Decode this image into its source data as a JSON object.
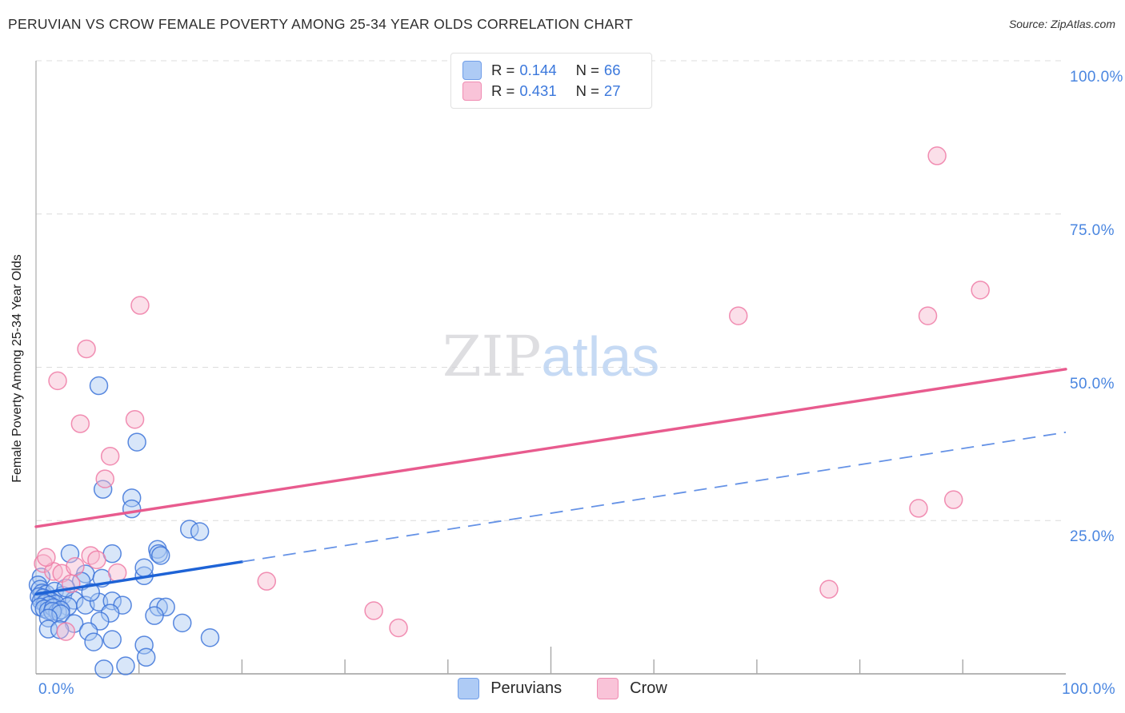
{
  "header": {
    "title": "PERUVIAN VS CROW FEMALE POVERTY AMONG 25-34 YEAR OLDS CORRELATION CHART",
    "source": "Source: ZipAtlas.com"
  },
  "y_axis_title": "Female Poverty Among 25-34 Year Olds",
  "stats_legend": {
    "rows": [
      {
        "r_label": "R =",
        "r_value": "0.144",
        "n_label": "N =",
        "n_value": "66"
      },
      {
        "r_label": "R =",
        "r_value": "0.431",
        "n_label": "N =",
        "n_value": "27"
      }
    ]
  },
  "watermark": {
    "zip": "ZIP",
    "atlas": "atlas"
  },
  "axis": {
    "right_labels": [
      "100.0%",
      "75.0%",
      "50.0%",
      "25.0%"
    ],
    "bottom_left": "0.0%",
    "bottom_right": "100.0%"
  },
  "bottom_legend": [
    {
      "label": "Peruvians",
      "color": "blue"
    },
    {
      "label": "Crow",
      "color": "pink"
    }
  ],
  "chart_data": {
    "type": "scatter",
    "title": "PERUVIAN VS CROW FEMALE POVERTY AMONG 25-34 YEAR OLDS CORRELATION CHART",
    "xlabel": "",
    "ylabel": "Female Poverty Among 25-34 Year Olds",
    "xlim": [
      0,
      100
    ],
    "ylim": [
      0,
      100
    ],
    "x_ticks_pct": [
      10,
      20,
      30,
      40,
      50,
      60,
      70,
      80,
      90
    ],
    "x_major_tick_pct": 50,
    "y_gridlines_pct": [
      25,
      50,
      75,
      100
    ],
    "grid": "dashed-horizontal",
    "legend_position": "bottom-center",
    "series": [
      {
        "name": "Peruvians",
        "R": 0.144,
        "N": 66,
        "stroke": "#3d74d9",
        "fill": "#a9c7f2",
        "points": [
          [
            6.1,
            47.0
          ],
          [
            9.8,
            37.8
          ],
          [
            6.5,
            30.1
          ],
          [
            9.3,
            28.7
          ],
          [
            9.3,
            26.9
          ],
          [
            14.9,
            23.6
          ],
          [
            15.9,
            23.2
          ],
          [
            11.8,
            20.3
          ],
          [
            11.9,
            19.6
          ],
          [
            3.3,
            19.6
          ],
          [
            7.4,
            19.6
          ],
          [
            12.1,
            19.3
          ],
          [
            0.5,
            15.8
          ],
          [
            4.8,
            16.3
          ],
          [
            6.4,
            15.6
          ],
          [
            10.5,
            16.0
          ],
          [
            4.4,
            15.1
          ],
          [
            10.5,
            17.3
          ],
          [
            0.2,
            14.5
          ],
          [
            0.4,
            13.8
          ],
          [
            0.6,
            13.2
          ],
          [
            1.0,
            13.0
          ],
          [
            1.8,
            13.5
          ],
          [
            2.6,
            12.8
          ],
          [
            0.3,
            12.6
          ],
          [
            0.7,
            12.4
          ],
          [
            1.1,
            12.1
          ],
          [
            1.5,
            11.8
          ],
          [
            1.9,
            11.4
          ],
          [
            0.5,
            11.9
          ],
          [
            0.9,
            11.5
          ],
          [
            1.3,
            11.2
          ],
          [
            3.7,
            12.0
          ],
          [
            4.8,
            11.2
          ],
          [
            6.1,
            11.7
          ],
          [
            7.4,
            11.9
          ],
          [
            8.4,
            11.2
          ],
          [
            3.1,
            11.0
          ],
          [
            0.4,
            10.9
          ],
          [
            0.8,
            10.6
          ],
          [
            1.2,
            10.3
          ],
          [
            1.7,
            10.8
          ],
          [
            2.1,
            10.1
          ],
          [
            2.4,
            10.4
          ],
          [
            1.6,
            10.2
          ],
          [
            2.4,
            9.8
          ],
          [
            1.2,
            9.1
          ],
          [
            7.2,
            9.9
          ],
          [
            6.2,
            8.6
          ],
          [
            3.7,
            8.2
          ],
          [
            1.2,
            7.3
          ],
          [
            2.3,
            7.2
          ],
          [
            5.1,
            6.9
          ],
          [
            11.9,
            10.9
          ],
          [
            12.6,
            10.9
          ],
          [
            11.5,
            9.5
          ],
          [
            14.2,
            8.3
          ],
          [
            16.9,
            5.9
          ],
          [
            5.6,
            5.2
          ],
          [
            7.4,
            5.6
          ],
          [
            10.5,
            4.7
          ],
          [
            10.7,
            2.7
          ],
          [
            8.7,
            1.3
          ],
          [
            6.6,
            0.8
          ],
          [
            2.9,
            14.0
          ],
          [
            5.3,
            13.3
          ]
        ]
      },
      {
        "name": "Crow",
        "R": 0.431,
        "N": 27,
        "stroke": "#ef7ba6",
        "fill": "#f6b8cf",
        "points": [
          [
            87.5,
            84.5
          ],
          [
            91.7,
            62.6
          ],
          [
            86.6,
            58.4
          ],
          [
            68.2,
            58.4
          ],
          [
            10.1,
            60.1
          ],
          [
            4.9,
            53.0
          ],
          [
            2.1,
            47.8
          ],
          [
            9.6,
            41.5
          ],
          [
            4.3,
            40.8
          ],
          [
            7.2,
            35.5
          ],
          [
            6.7,
            31.8
          ],
          [
            89.1,
            28.4
          ],
          [
            85.7,
            27.0
          ],
          [
            77.0,
            13.8
          ],
          [
            22.4,
            15.1
          ],
          [
            32.8,
            10.3
          ],
          [
            35.2,
            7.5
          ],
          [
            0.7,
            18.0
          ],
          [
            1.7,
            16.7
          ],
          [
            2.5,
            16.4
          ],
          [
            5.3,
            19.3
          ],
          [
            5.9,
            18.6
          ],
          [
            3.4,
            14.7
          ],
          [
            2.9,
            6.9
          ],
          [
            1.0,
            19.0
          ],
          [
            3.8,
            17.5
          ],
          [
            7.9,
            16.5
          ]
        ]
      }
    ],
    "trendlines": [
      {
        "series": "Peruvians",
        "x0": 0,
        "y0": 13.0,
        "x1": 100,
        "y1": 39.4,
        "solid_until_x": 20,
        "color": "#1e63d6",
        "dash_color": "#6592e6"
      },
      {
        "series": "Crow",
        "x0": 0,
        "y0": 24.0,
        "x1": 100,
        "y1": 49.7,
        "solid_until_x": 100,
        "color": "#e85b8e"
      }
    ]
  }
}
